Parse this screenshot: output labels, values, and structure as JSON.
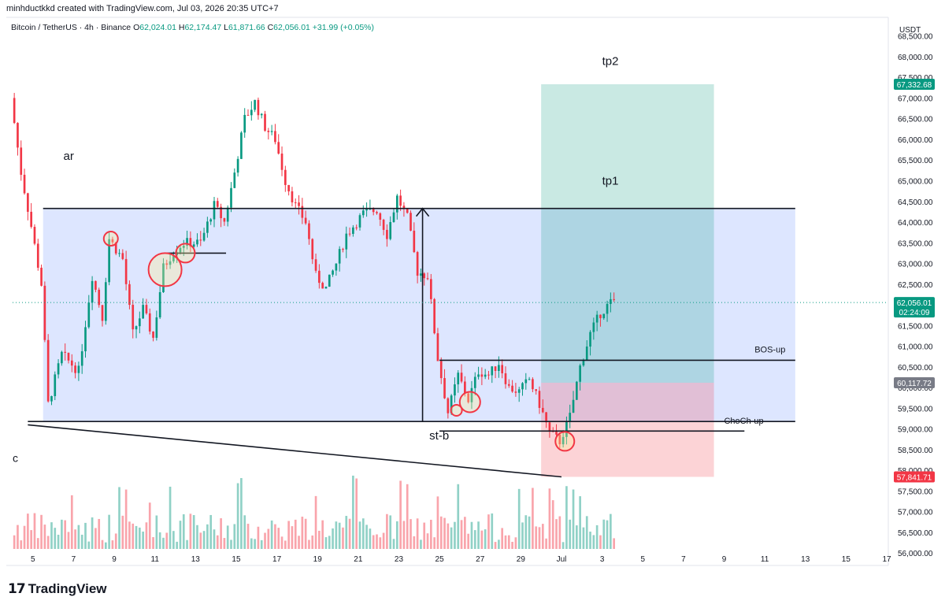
{
  "header": {
    "credit": "minhductkkd created with TradingView.com, Jul 03, 2026 20:35 UTC+7",
    "symbol": "Bitcoin / TetherUS · 4h · Binance",
    "ohlc": [
      {
        "k": "O",
        "v": "62,024.01"
      },
      {
        "k": "H",
        "v": "62,174.47"
      },
      {
        "k": "L",
        "v": "61,871.66"
      },
      {
        "k": "C",
        "v": "62,056.01"
      }
    ],
    "change": "+31.99 (+0.05%)"
  },
  "footer": {
    "brand": "TradingView"
  },
  "chart_data": {
    "type": "candlestick",
    "currency": "USDT",
    "y_range": [
      55700,
      68950
    ],
    "y_ticks": [
      56000,
      56500,
      57000,
      57500,
      58000,
      58500,
      59000,
      59500,
      60000,
      60500,
      61000,
      61500,
      62000,
      62500,
      63000,
      63500,
      64000,
      64500,
      65000,
      65500,
      66000,
      66500,
      67000,
      67500,
      68000,
      68500
    ],
    "x_range": [
      "Jun 4",
      "Jul 17"
    ],
    "x_ticks": [
      {
        "date": "Jun 5",
        "label": "5"
      },
      {
        "date": "Jun 7",
        "label": "7"
      },
      {
        "date": "Jun 9",
        "label": "9"
      },
      {
        "date": "Jun 11",
        "label": "11"
      },
      {
        "date": "Jun 13",
        "label": "13"
      },
      {
        "date": "Jun 15",
        "label": "15"
      },
      {
        "date": "Jun 17",
        "label": "17"
      },
      {
        "date": "Jun 19",
        "label": "19"
      },
      {
        "date": "Jun 21",
        "label": "21"
      },
      {
        "date": "Jun 23",
        "label": "23"
      },
      {
        "date": "Jun 25",
        "label": "25"
      },
      {
        "date": "Jun 27",
        "label": "27"
      },
      {
        "date": "Jun 29",
        "label": "29"
      },
      {
        "date": "Jul 1",
        "label": "Jul"
      },
      {
        "date": "Jul 3",
        "label": "3"
      },
      {
        "date": "Jul 5",
        "label": "5"
      },
      {
        "date": "Jul 7",
        "label": "7"
      },
      {
        "date": "Jul 9",
        "label": "9"
      },
      {
        "date": "Jul 11",
        "label": "11"
      },
      {
        "date": "Jul 13",
        "label": "13"
      },
      {
        "date": "Jul 15",
        "label": "15"
      },
      {
        "date": "Jul 17",
        "label": "17"
      }
    ],
    "price_labels": [
      {
        "text": "67,332.68",
        "price": 67332.68,
        "color": "#089981"
      },
      {
        "text": "62,056.01",
        "sub": "02:24:09",
        "price": 62056.01,
        "color": "#089981"
      },
      {
        "text": "60,117.72",
        "price": 60117.72,
        "color": "#787b86"
      },
      {
        "text": "57,841.71",
        "price": 57841.71,
        "color": "#f23645"
      }
    ],
    "anchors": [
      {
        "t": "Jun 4 00:00",
        "p": 67000
      },
      {
        "t": "Jun 4 12:00",
        "p": 65200
      },
      {
        "t": "Jun 5 00:00",
        "p": 63900
      },
      {
        "t": "Jun 5 12:00",
        "p": 62500
      },
      {
        "t": "Jun 5 20:00",
        "p": 59600
      },
      {
        "t": "Jun 6 12:00",
        "p": 60800
      },
      {
        "t": "Jun 7 08:00",
        "p": 60400
      },
      {
        "t": "Jun 8 00:00",
        "p": 62700
      },
      {
        "t": "Jun 8 12:00",
        "p": 61700
      },
      {
        "t": "Jun 8 20:00",
        "p": 63600
      },
      {
        "t": "Jun 9 12:00",
        "p": 63100
      },
      {
        "t": "Jun 10 00:00",
        "p": 61300
      },
      {
        "t": "Jun 10 12:00",
        "p": 61900
      },
      {
        "t": "Jun 11 00:00",
        "p": 61200
      },
      {
        "t": "Jun 11 12:00",
        "p": 62900
      },
      {
        "t": "Jun 12 00:00",
        "p": 63300
      },
      {
        "t": "Jun 12 12:00",
        "p": 63500
      },
      {
        "t": "Jun 13 08:00",
        "p": 63500
      },
      {
        "t": "Jun 14 00:00",
        "p": 64400
      },
      {
        "t": "Jun 14 12:00",
        "p": 64000
      },
      {
        "t": "Jun 15 00:00",
        "p": 65200
      },
      {
        "t": "Jun 15 12:00",
        "p": 66500
      },
      {
        "t": "Jun 16 00:00",
        "p": 66900
      },
      {
        "t": "Jun 16 12:00",
        "p": 66300
      },
      {
        "t": "Jun 17 00:00",
        "p": 66000
      },
      {
        "t": "Jun 17 12:00",
        "p": 65000
      },
      {
        "t": "Jun 18 00:00",
        "p": 64400
      },
      {
        "t": "Jun 18 12:00",
        "p": 64000
      },
      {
        "t": "Jun 19 00:00",
        "p": 62700
      },
      {
        "t": "Jun 19 12:00",
        "p": 62400
      },
      {
        "t": "Jun 20 00:00",
        "p": 63000
      },
      {
        "t": "Jun 20 12:00",
        "p": 63700
      },
      {
        "t": "Jun 21 08:00",
        "p": 64200
      },
      {
        "t": "Jun 22 00:00",
        "p": 64300
      },
      {
        "t": "Jun 22 12:00",
        "p": 63700
      },
      {
        "t": "Jun 23 00:00",
        "p": 64600
      },
      {
        "t": "Jun 23 12:00",
        "p": 64100
      },
      {
        "t": "Jun 24 00:00",
        "p": 62800
      },
      {
        "t": "Jun 24 12:00",
        "p": 62700
      },
      {
        "t": "Jun 25 00:00",
        "p": 60700
      },
      {
        "t": "Jun 25 12:00",
        "p": 59400
      },
      {
        "t": "Jun 26 00:00",
        "p": 60300
      },
      {
        "t": "Jun 26 12:00",
        "p": 59700
      },
      {
        "t": "Jun 27 00:00",
        "p": 60400
      },
      {
        "t": "Jun 27 12:00",
        "p": 60300
      },
      {
        "t": "Jun 28 00:00",
        "p": 60600
      },
      {
        "t": "Jun 28 12:00",
        "p": 60000
      },
      {
        "t": "Jun 29 00:00",
        "p": 59900
      },
      {
        "t": "Jun 29 12:00",
        "p": 60200
      },
      {
        "t": "Jun 30 00:00",
        "p": 59600
      },
      {
        "t": "Jun 30 12:00",
        "p": 58900
      },
      {
        "t": "Jul 1 00:00",
        "p": 58700
      },
      {
        "t": "Jul 1 12:00",
        "p": 59300
      },
      {
        "t": "Jul 2 00:00",
        "p": 60500
      },
      {
        "t": "Jul 2 12:00",
        "p": 61300
      },
      {
        "t": "Jul 3 00:00",
        "p": 61800
      },
      {
        "t": "Jul 3 12:00",
        "p": 62056
      }
    ],
    "boxes": [
      {
        "name": "range-box",
        "t1": "Jun 5 12:00",
        "t2": "Jul 12 12:00",
        "p1": 64330,
        "p2": 59180,
        "fill": "rgba(41,98,255,0.16)"
      },
      {
        "name": "long-profit-box",
        "t1": "Jun 30 00:00",
        "t2": "Jul 8 12:00",
        "p1": 67332.68,
        "p2": 60117.72,
        "fill": "rgba(8,153,129,0.22)"
      },
      {
        "name": "long-stop-box",
        "t1": "Jun 30 00:00",
        "t2": "Jul 8 12:00",
        "p1": 60117.72,
        "p2": 57841.71,
        "fill": "rgba(242,54,69,0.22)"
      }
    ],
    "lines": [
      {
        "name": "range-top-line",
        "t1": "Jun 5 12:00",
        "p1": 64330,
        "t2": "Jul 12 12:00",
        "p2": 64330
      },
      {
        "name": "range-bottom-line",
        "t1": "Jun 4 18:00",
        "p1": 59180,
        "t2": "Jul 12 12:00",
        "p2": 59180
      },
      {
        "name": "descending-trendline",
        "t1": "Jun 4 18:00",
        "p1": 59100,
        "t2": "Jul 1 00:00",
        "p2": 57841.71
      },
      {
        "name": "bos-up-line",
        "t1": "Jun 25 00:00",
        "p1": 60660,
        "t2": "Jul 12 12:00",
        "p2": 60660
      },
      {
        "name": "choch-up-line",
        "t1": "Jun 25 00:00",
        "p1": 58950,
        "t2": "Jul 10 00:00",
        "p2": 58950
      },
      {
        "name": "short-level-line",
        "t1": "Jun 11 12:00",
        "p1": 63250,
        "t2": "Jun 14 12:00",
        "p2": 63250
      },
      {
        "name": "range-height-arrow-line",
        "t1": "Jun 24 04:00",
        "p1": 59180,
        "t2": "Jun 24 04:00",
        "p2": 64330
      }
    ],
    "circles": [
      {
        "t": "Jun 8 20:00",
        "p": 63600,
        "r": 9
      },
      {
        "t": "Jun 11 12:00",
        "p": 62850,
        "r": 21
      },
      {
        "t": "Jun 12 12:00",
        "p": 63250,
        "r": 12
      },
      {
        "t": "Jun 25 20:00",
        "p": 59450,
        "r": 7
      },
      {
        "t": "Jun 26 12:00",
        "p": 59650,
        "r": 13
      },
      {
        "t": "Jul 1 04:00",
        "p": 58700,
        "r": 12
      }
    ],
    "annotations": [
      {
        "text": "ar",
        "t": "Jun 6 12:00",
        "p": 65500,
        "size": 15
      },
      {
        "text": "tp2",
        "t": "Jul 3 00:00",
        "p": 67800,
        "size": 15
      },
      {
        "text": "tp1",
        "t": "Jul 3 00:00",
        "p": 64900,
        "size": 15
      },
      {
        "text": "BOS-up",
        "t": "Jul 10 12:00",
        "p": 60850,
        "size": 11
      },
      {
        "text": "ChoCh-up",
        "t": "Jul 9 00:00",
        "p": 59130,
        "size": 11
      },
      {
        "text": "st-b",
        "t": "Jun 24 12:00",
        "p": 58750,
        "size": 15
      },
      {
        "text": "c",
        "t": "Jun 4 00:00",
        "p": 58200,
        "size": 14
      }
    ]
  }
}
